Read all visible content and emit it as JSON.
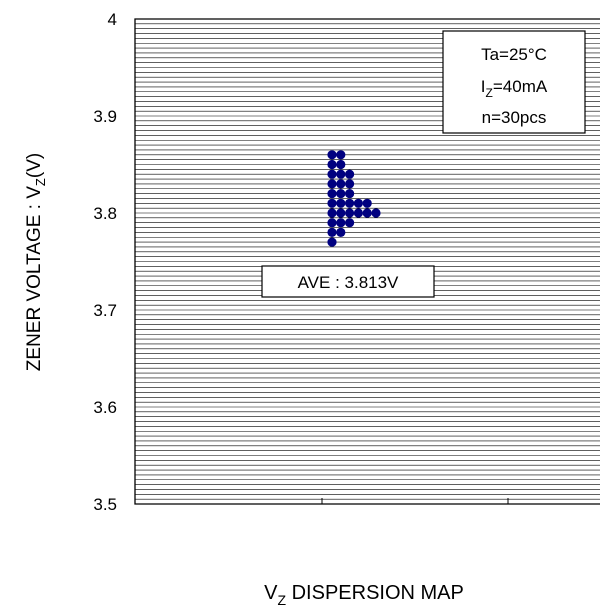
{
  "chart_data": {
    "type": "scatter",
    "title": "",
    "xlabel": {
      "main": "V",
      "sub": "Z",
      "rest": " DISPERSION MAP"
    },
    "ylabel": {
      "main": "ZENER VOLTAGE : V",
      "sub": "Z",
      "rest": "(V)"
    },
    "ylim": [
      3.5,
      4.0
    ],
    "y_ticks": [
      "3.5",
      "3.6",
      "3.7",
      "3.8",
      "3.9",
      "4"
    ],
    "grid": {
      "horizontal": true,
      "step": 0.005
    },
    "conditions": {
      "line1": "Ta=25°C",
      "line2": {
        "main": "I",
        "sub": "Z",
        "rest": "=40mA"
      },
      "line3": "n=30pcs"
    },
    "average_label": "AVE : 3.813V",
    "columns": [
      {
        "index": 0,
        "values": [
          3.77,
          3.78,
          3.79,
          3.8,
          3.81,
          3.82,
          3.83,
          3.84,
          3.85,
          3.86
        ]
      },
      {
        "index": 1,
        "values": [
          3.78,
          3.79,
          3.8,
          3.81,
          3.82,
          3.83,
          3.84,
          3.85,
          3.86
        ]
      },
      {
        "index": 2,
        "values": [
          3.79,
          3.8,
          3.81,
          3.82,
          3.83,
          3.84
        ]
      },
      {
        "index": 3,
        "values": [
          3.8,
          3.81
        ]
      },
      {
        "index": 4,
        "values": [
          3.8,
          3.81
        ]
      },
      {
        "index": 5,
        "values": [
          3.8
        ]
      }
    ],
    "marker_color": "#000080"
  }
}
